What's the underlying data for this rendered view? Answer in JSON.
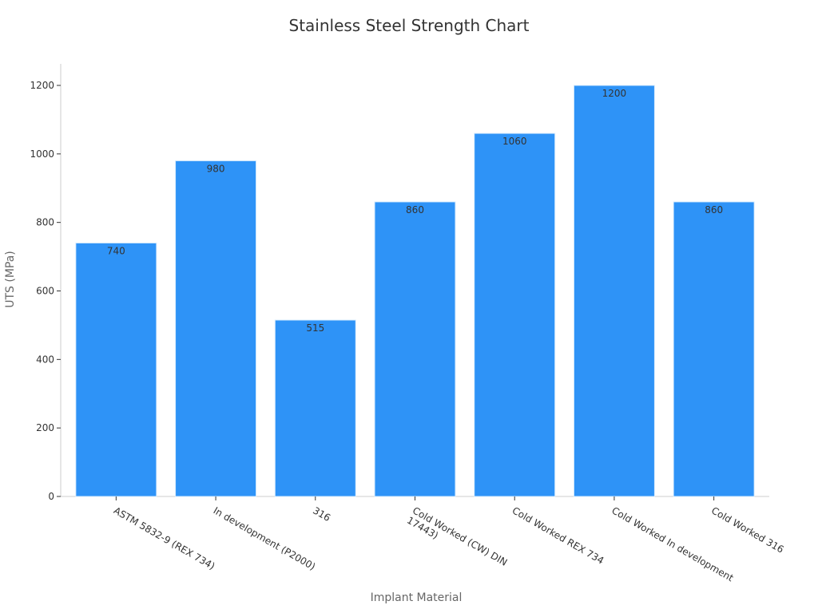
{
  "chart_data": {
    "type": "bar",
    "title": "Stainless Steel Strength Chart",
    "xlabel": "Implant Material",
    "ylabel": "UTS (MPa)",
    "categories": [
      "ASTM 5832-9 (REX 734)",
      "In development (P2000)",
      "316",
      "Cold Worked (CW) DIN 17443)",
      "Cold Worked REX 734",
      "Cold Worked In development",
      "Cold Worked 316"
    ],
    "category_lines": [
      [
        "ASTM 5832-9 (REX 734)"
      ],
      [
        "In development (P2000)"
      ],
      [
        "316"
      ],
      [
        "Cold Worked (CW) DIN",
        "17443)"
      ],
      [
        "Cold Worked REX 734"
      ],
      [
        "Cold Worked In development"
      ],
      [
        "Cold Worked 316"
      ]
    ],
    "values": [
      740,
      980,
      515,
      860,
      1060,
      1200,
      860
    ],
    "ylim": [
      0,
      1260
    ],
    "yticks": [
      0,
      200,
      400,
      600,
      800,
      1000,
      1200
    ],
    "bar_color": "#2E93F7",
    "grid": false,
    "data_labels": true
  }
}
